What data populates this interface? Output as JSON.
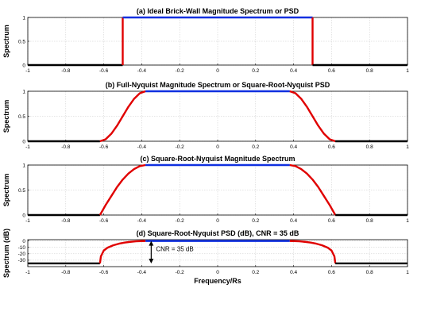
{
  "chart_data": [
    {
      "type": "line",
      "title": "(a) Ideal Brick-Wall Magnitude Spectrum or PSD",
      "xlabel": "",
      "ylabel": "Spectrum",
      "xlim": [
        -1,
        1
      ],
      "ylim": [
        0,
        1
      ],
      "x_ticks": [
        "-1",
        "-0.8",
        "-0.6",
        "-0.4",
        "-0.2",
        "0",
        "0.2",
        "0.4",
        "0.6",
        "0.8",
        "1"
      ],
      "y_ticks": [
        "0",
        "0.5",
        "1"
      ],
      "grid": true,
      "series": [
        {
          "color": "#000000",
          "x": [
            -1,
            -0.5
          ],
          "y": [
            0,
            0
          ]
        },
        {
          "color": "#e00000",
          "x": [
            -0.5,
            -0.5
          ],
          "y": [
            0,
            1
          ]
        },
        {
          "color": "#1030e0",
          "x": [
            -0.5,
            0.5
          ],
          "y": [
            1,
            1
          ]
        },
        {
          "color": "#e00000",
          "x": [
            0.5,
            0.5
          ],
          "y": [
            1,
            0
          ]
        },
        {
          "color": "#000000",
          "x": [
            0.5,
            1
          ],
          "y": [
            0,
            0
          ]
        }
      ]
    },
    {
      "type": "line",
      "title": "(b) Full-Nyquist Magnitude Spectrum or Square-Root-Nyquist PSD",
      "xlabel": "",
      "ylabel": "Spectrum",
      "xlim": [
        -1,
        1
      ],
      "ylim": [
        0,
        1
      ],
      "x_ticks": [
        "-1",
        "-0.8",
        "-0.6",
        "-0.4",
        "-0.2",
        "0",
        "0.2",
        "0.4",
        "0.6",
        "0.8",
        "1"
      ],
      "y_ticks": [
        "0",
        "0.5",
        "1"
      ],
      "grid": true,
      "series": [
        {
          "color": "#000000",
          "x": [
            -1,
            -0.62
          ],
          "y": [
            0,
            0
          ]
        },
        {
          "color": "#e00000",
          "x": [
            -0.62,
            -0.59,
            -0.56,
            -0.53,
            -0.5,
            -0.47,
            -0.44,
            -0.41,
            -0.38
          ],
          "y": [
            0,
            0.04,
            0.15,
            0.31,
            0.5,
            0.69,
            0.85,
            0.96,
            1
          ]
        },
        {
          "color": "#1030e0",
          "x": [
            -0.38,
            0.38
          ],
          "y": [
            1,
            1
          ]
        },
        {
          "color": "#e00000",
          "x": [
            0.38,
            0.41,
            0.44,
            0.47,
            0.5,
            0.53,
            0.56,
            0.59,
            0.62
          ],
          "y": [
            1,
            0.96,
            0.85,
            0.69,
            0.5,
            0.31,
            0.15,
            0.04,
            0
          ]
        },
        {
          "color": "#000000",
          "x": [
            0.62,
            1
          ],
          "y": [
            0,
            0
          ]
        }
      ]
    },
    {
      "type": "line",
      "title": "(c) Square-Root-Nyquist Magnitude Spectrum",
      "xlabel": "",
      "ylabel": "Spectrum",
      "xlim": [
        -1,
        1
      ],
      "ylim": [
        0,
        1
      ],
      "x_ticks": [
        "-1",
        "-0.8",
        "-0.6",
        "-0.4",
        "-0.2",
        "0",
        "0.2",
        "0.4",
        "0.6",
        "0.8",
        "1"
      ],
      "y_ticks": [
        "0",
        "0.5",
        "1"
      ],
      "grid": true,
      "series": [
        {
          "color": "#000000",
          "x": [
            -1,
            -0.62
          ],
          "y": [
            0,
            0
          ]
        },
        {
          "color": "#e00000",
          "x": [
            -0.62,
            -0.59,
            -0.56,
            -0.53,
            -0.5,
            -0.47,
            -0.44,
            -0.41,
            -0.38
          ],
          "y": [
            0,
            0.2,
            0.38,
            0.56,
            0.71,
            0.83,
            0.92,
            0.98,
            1
          ]
        },
        {
          "color": "#1030e0",
          "x": [
            -0.38,
            0.38
          ],
          "y": [
            1,
            1
          ]
        },
        {
          "color": "#e00000",
          "x": [
            0.38,
            0.41,
            0.44,
            0.47,
            0.5,
            0.53,
            0.56,
            0.59,
            0.62
          ],
          "y": [
            1,
            0.98,
            0.92,
            0.83,
            0.71,
            0.56,
            0.38,
            0.2,
            0
          ]
        },
        {
          "color": "#000000",
          "x": [
            0.62,
            1
          ],
          "y": [
            0,
            0
          ]
        }
      ]
    },
    {
      "type": "line",
      "title": "(d) Square-Root-Nyquist PSD (dB), CNR = 35 dB",
      "xlabel": "Frequency/Rs",
      "ylabel": "Spectrum (dB)",
      "xlim": [
        -1,
        1
      ],
      "ylim": [
        -40,
        2
      ],
      "x_ticks": [
        "-1",
        "-0.8",
        "-0.6",
        "-0.4",
        "-0.2",
        "0",
        "0.2",
        "0.4",
        "0.6",
        "0.8",
        "1"
      ],
      "y_ticks": [
        "0",
        "-10",
        "-20",
        "-30"
      ],
      "grid": true,
      "annotation": "CNR = 35 dB",
      "annotation_arrow": {
        "x": -0.35,
        "y_from": 0,
        "y_to": -35
      },
      "series": [
        {
          "color": "#000000",
          "x": [
            -1,
            -0.62
          ],
          "y": [
            -35,
            -35
          ]
        },
        {
          "color": "#e00000",
          "x": [
            -0.62,
            -0.615,
            -0.6,
            -0.58,
            -0.55,
            -0.52,
            -0.49,
            -0.46,
            -0.43,
            -0.4,
            -0.38
          ],
          "y": [
            -35,
            -24,
            -15,
            -10.5,
            -6.8,
            -4.3,
            -2.6,
            -1.4,
            -0.6,
            -0.15,
            0
          ]
        },
        {
          "color": "#1030e0",
          "x": [
            -0.38,
            0.38
          ],
          "y": [
            0,
            0
          ]
        },
        {
          "color": "#e00000",
          "x": [
            0.38,
            0.4,
            0.43,
            0.46,
            0.49,
            0.52,
            0.55,
            0.58,
            0.6,
            0.615,
            0.62
          ],
          "y": [
            0,
            -0.15,
            -0.6,
            -1.4,
            -2.6,
            -4.3,
            -6.8,
            -10.5,
            -15,
            -24,
            -35
          ]
        },
        {
          "color": "#000000",
          "x": [
            0.62,
            1
          ],
          "y": [
            -35,
            -35
          ]
        }
      ]
    }
  ]
}
